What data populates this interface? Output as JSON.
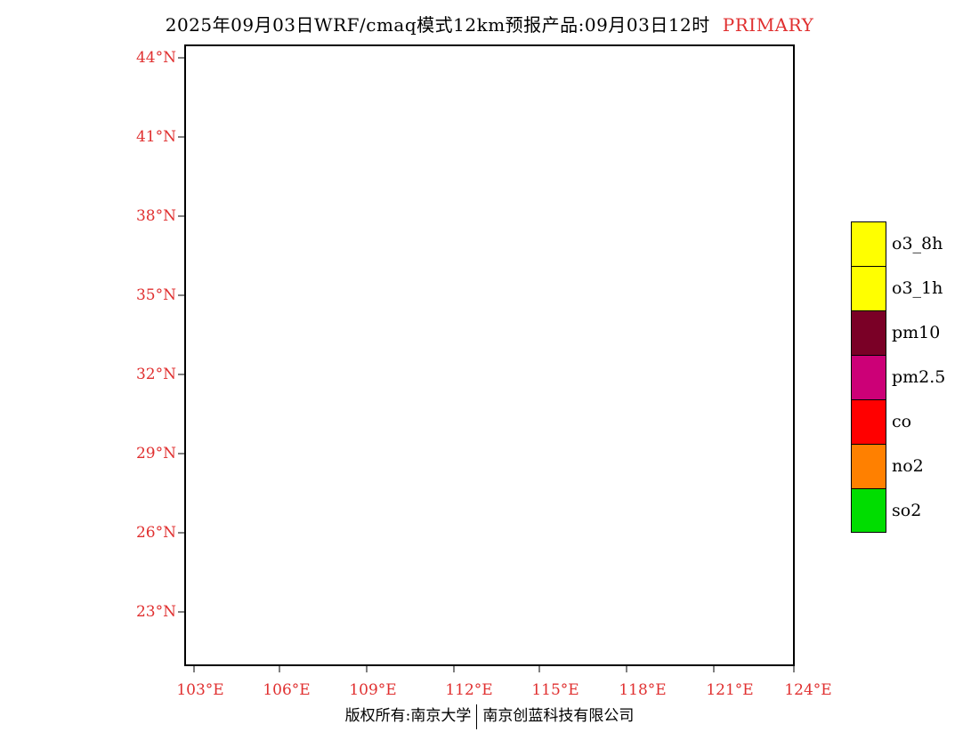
{
  "title": {
    "main": "2025年09月03日WRF/cmaq模式12km预报产品:09月03日12时",
    "tag": "PRIMARY",
    "tag_color": "#e03030"
  },
  "axes": {
    "lat_labels": [
      "44°N",
      "41°N",
      "38°N",
      "35°N",
      "32°N",
      "29°N",
      "26°N",
      "23°N"
    ],
    "lon_labels": [
      "103°E",
      "106°E",
      "109°E",
      "112°E",
      "115°E",
      "118°E",
      "121°E",
      "124°E"
    ],
    "label_color": "#e03030"
  },
  "legend": {
    "items": [
      {
        "label": "o3_8h",
        "color": "#ffff00"
      },
      {
        "label": "o3_1h",
        "color": "#ffff00"
      },
      {
        "label": "pm10",
        "color": "#7a0026"
      },
      {
        "label": "pm2.5",
        "color": "#cc0077"
      },
      {
        "label": "co",
        "color": "#ff0000"
      },
      {
        "label": "no2",
        "color": "#ff8000"
      },
      {
        "label": "so2",
        "color": "#00dd00"
      }
    ]
  },
  "footer": {
    "left": "版权所有:南京大学",
    "right": "南京创蓝科技有限公司"
  }
}
